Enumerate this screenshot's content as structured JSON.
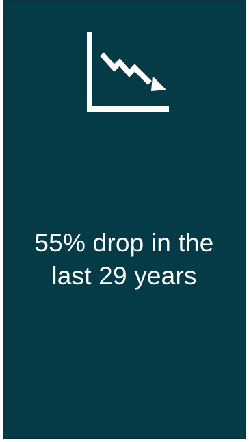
{
  "card": {
    "background_color": "#043b47",
    "icon": "declining-line-chart-icon",
    "text_lines": [
      "55% drop in the",
      "last 29 years"
    ]
  }
}
